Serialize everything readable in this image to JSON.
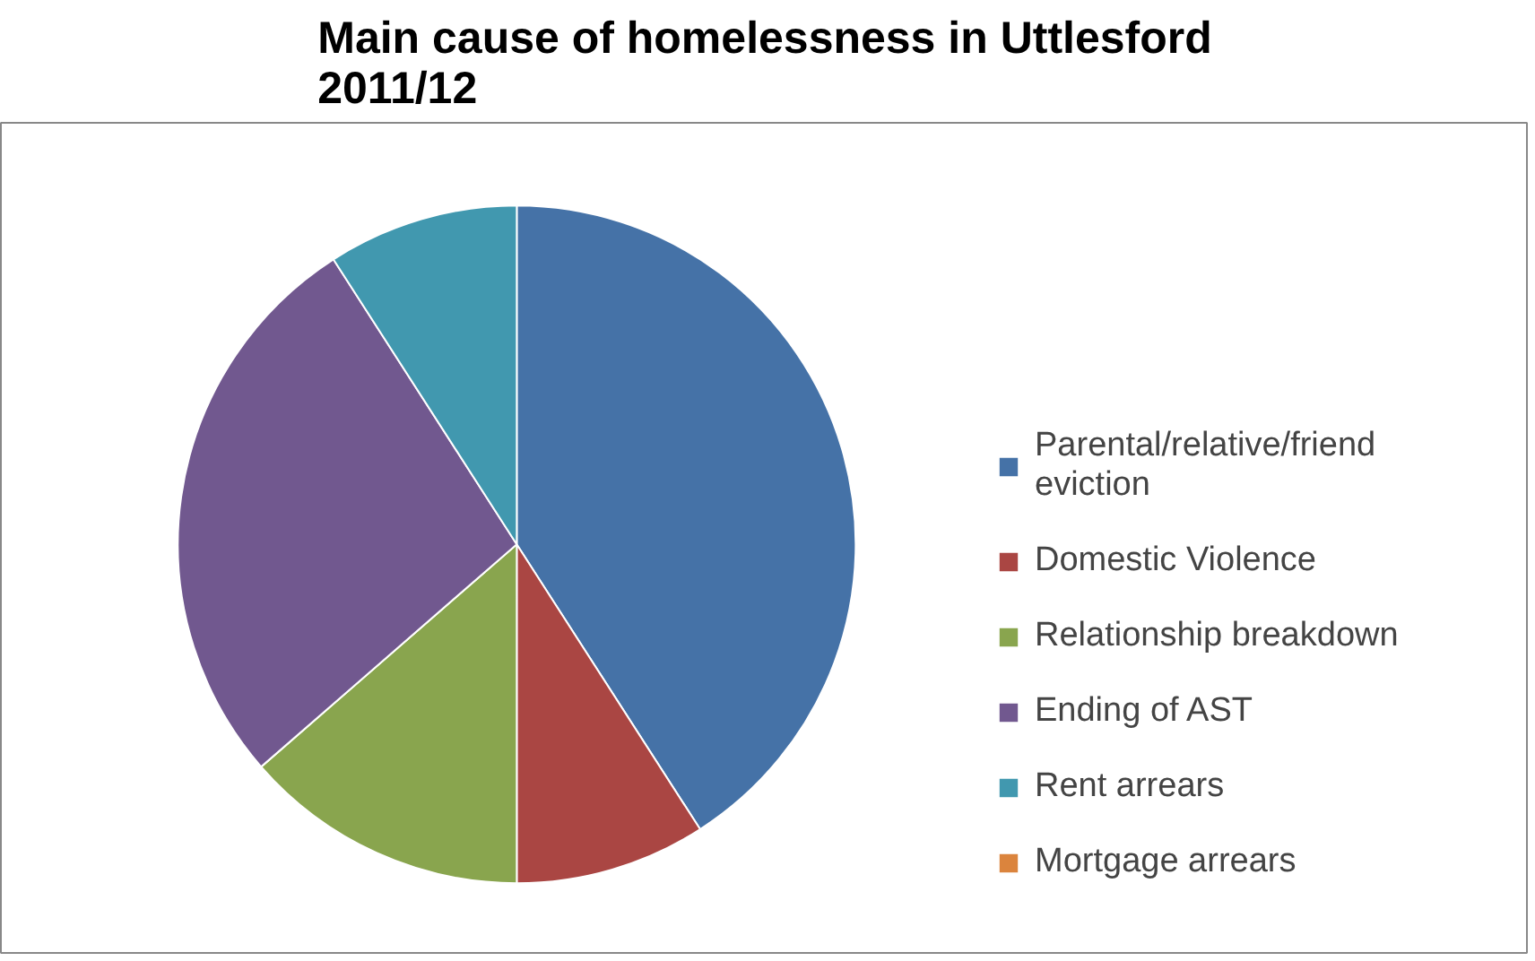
{
  "chart_data": {
    "type": "pie",
    "title": "Main cause of homelessness in Uttlesford 2011/12",
    "categories": [
      "Parental/relative/friend eviction",
      "Domestic Violence",
      "Relationship breakdown",
      "Ending of AST",
      "Rent arrears",
      "Mortgage arrears"
    ],
    "values": [
      40.9,
      9.1,
      13.6,
      27.3,
      9.1,
      0
    ],
    "colors": [
      "#4572a7",
      "#aa4643",
      "#89a54e",
      "#71588f",
      "#4198af",
      "#db843d"
    ],
    "legend": "right"
  }
}
